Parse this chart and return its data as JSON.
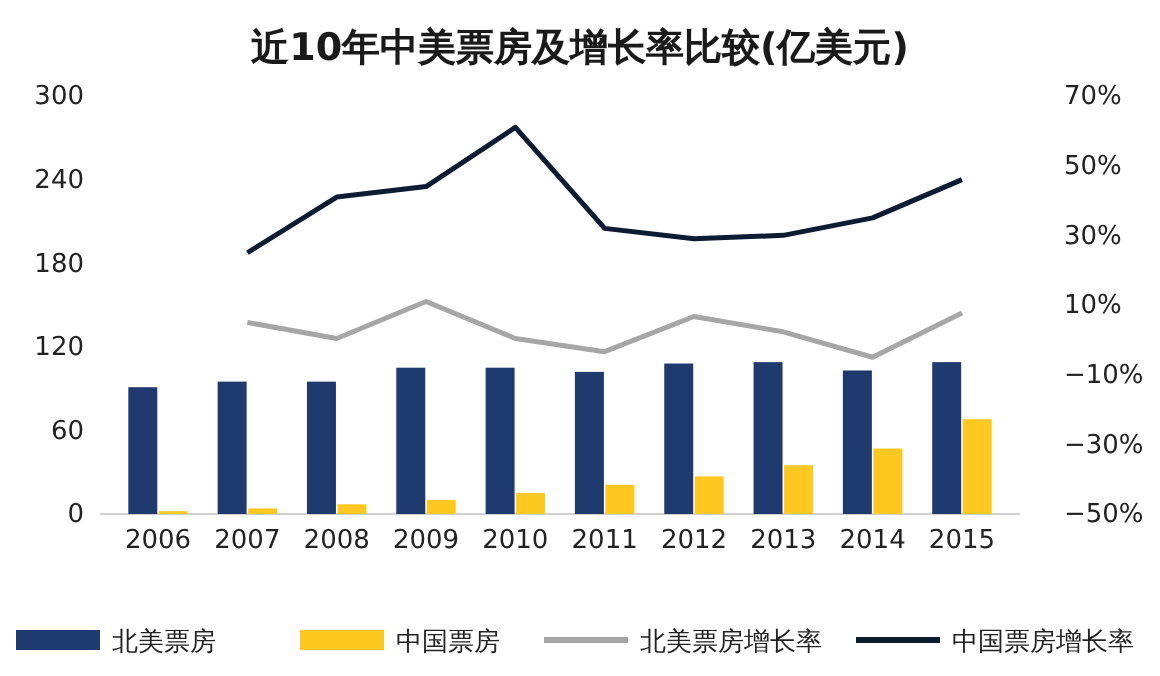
{
  "chart_data": {
    "type": "bar",
    "title": "近10年中美票房及增长率比较(亿美元)",
    "categories": [
      "2006",
      "2007",
      "2008",
      "2009",
      "2010",
      "2011",
      "2012",
      "2013",
      "2014",
      "2015"
    ],
    "series": [
      {
        "name": "北美票房",
        "color": "#1f3a6e",
        "values": [
          91,
          95,
          95,
          105,
          105,
          102,
          108,
          109,
          103,
          109
        ]
      },
      {
        "name": "中国票房",
        "color": "#ffc820",
        "values": [
          2,
          4,
          7,
          10,
          15,
          21,
          27,
          35,
          47,
          68
        ]
      },
      {
        "name": "北美票房增长率",
        "type": "line",
        "axis": "y2",
        "color": "#a6a6a6",
        "values": [
          null,
          5,
          0.4,
          11,
          0.4,
          -3.4,
          6.7,
          2.3,
          -5,
          7.7
        ]
      },
      {
        "name": "中国票房增长率",
        "type": "line",
        "axis": "y2",
        "color": "#0d1b33",
        "values": [
          null,
          25,
          41,
          44,
          61,
          32,
          29,
          30,
          35,
          46
        ]
      }
    ],
    "ylim": [
      0,
      300
    ],
    "yticks": [
      0,
      60,
      120,
      180,
      240,
      300
    ],
    "y2lim": [
      -50,
      70
    ],
    "y2ticks": [
      {
        "value": -50,
        "label": "−50%"
      },
      {
        "value": -30,
        "label": "−30%"
      },
      {
        "value": -10,
        "label": "−10%"
      },
      {
        "value": 10,
        "label": "10%"
      },
      {
        "value": 30,
        "label": "30%"
      },
      {
        "value": 50,
        "label": "50%"
      },
      {
        "value": 70,
        "label": "70%"
      }
    ],
    "grid": false,
    "legend": "bottom",
    "marker": "none"
  }
}
